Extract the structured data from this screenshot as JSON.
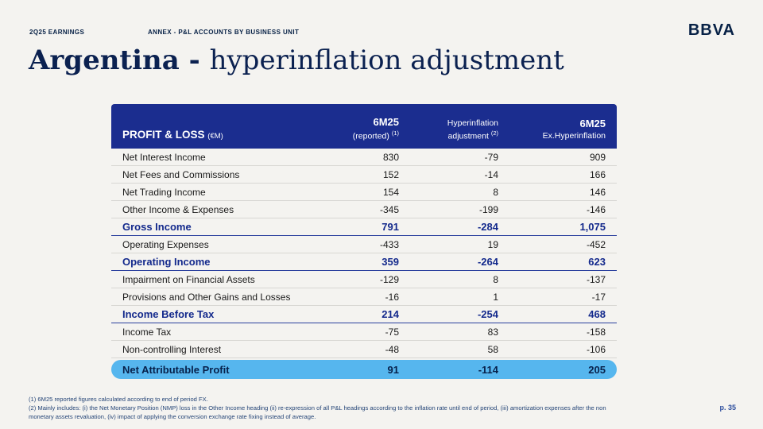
{
  "topbar": {
    "eyebrow_left": "2Q25 EARNINGS",
    "eyebrow_center": "ANNEX - P&L ACCOUNTS BY BUSINESS UNIT",
    "logo": "BBVA"
  },
  "title": {
    "emphasis": "Argentina - ",
    "rest": "hyperinflation adjustment"
  },
  "table": {
    "header": {
      "col0_label": "PROFIT & LOSS",
      "col0_unit": "(€M)",
      "col1_line1": "6M25",
      "col1_line2": "(reported)",
      "col1_sup": "(1)",
      "col2_line1": "Hyperinflation",
      "col2_line2": "adjustment",
      "col2_sup": "(2)",
      "col3_line1": "6M25",
      "col3_line2": "Ex.Hyperinflation"
    },
    "rows": [
      {
        "label": "Net Interest Income",
        "reported": "830",
        "adjustment": "-79",
        "ex": "909",
        "style": ""
      },
      {
        "label": "Net Fees and Commissions",
        "reported": "152",
        "adjustment": "-14",
        "ex": "166",
        "style": ""
      },
      {
        "label": "Net Trading Income",
        "reported": "154",
        "adjustment": "8",
        "ex": "146",
        "style": ""
      },
      {
        "label": "Other Income & Expenses",
        "reported": "-345",
        "adjustment": "-199",
        "ex": "-146",
        "style": ""
      },
      {
        "label": "Gross Income",
        "reported": "791",
        "adjustment": "-284",
        "ex": "1,075",
        "style": "total"
      },
      {
        "label": "Operating Expenses",
        "reported": "-433",
        "adjustment": "19",
        "ex": "-452",
        "style": ""
      },
      {
        "label": "Operating Income",
        "reported": "359",
        "adjustment": "-264",
        "ex": "623",
        "style": "total"
      },
      {
        "label": "Impairment on Financial Assets",
        "reported": "-129",
        "adjustment": "8",
        "ex": "-137",
        "style": ""
      },
      {
        "label": "Provisions and Other Gains and Losses",
        "reported": "-16",
        "adjustment": "1",
        "ex": "-17",
        "style": ""
      },
      {
        "label": "Income Before Tax",
        "reported": "214",
        "adjustment": "-254",
        "ex": "468",
        "style": "total"
      },
      {
        "label": "Income Tax",
        "reported": "-75",
        "adjustment": "83",
        "ex": "-158",
        "style": ""
      },
      {
        "label": "Non-controlling Interest",
        "reported": "-48",
        "adjustment": "58",
        "ex": "-106",
        "style": ""
      },
      {
        "label": "Net Attributable Profit",
        "reported": "91",
        "adjustment": "-114",
        "ex": "205",
        "style": "highlight"
      }
    ]
  },
  "footnotes": [
    "(1) 6M25 reported figures calculated according to end of period FX.",
    "(2) Mainly includes: (i) the Net Monetary Position (NMP) loss in the Other Income heading (ii) re-expression of all P&L headings according to the inflation rate until end of period, (iii) amortization expenses after the non monetary assets revaluation, (iv) impact of applying the conversion exchange rate fixing instead of average."
  ],
  "page_number": "p. 35",
  "colors": {
    "background": "#f4f3f0",
    "navy": "#072146",
    "table_header_blue": "#1b2d8f",
    "total_text_blue": "#13298c",
    "highlight_blue": "#56b6ee"
  }
}
